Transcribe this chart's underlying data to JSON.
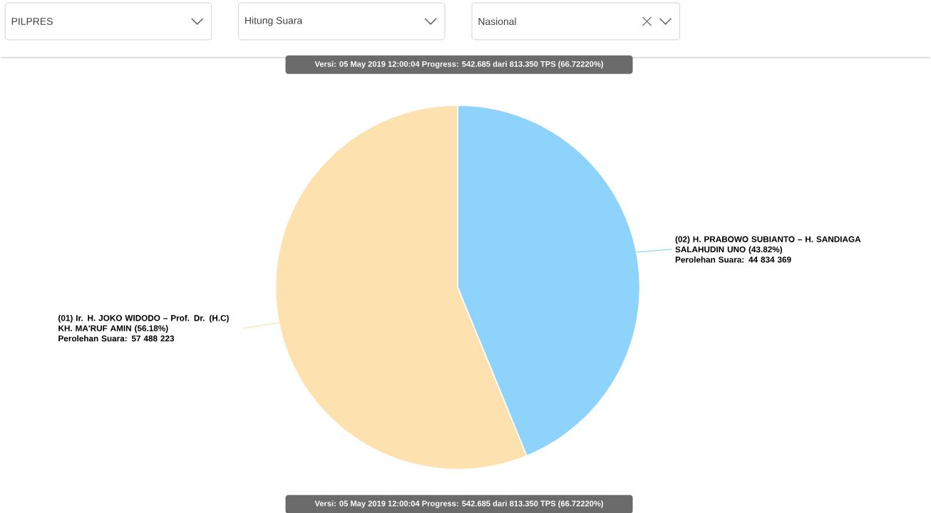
{
  "chart_data": {
    "type": "pie",
    "title": "Versi: 05 May 2019 12:00:04 Progress: 542.685 dari 813.350 TPS (66.72220%)",
    "categories": [
      "(02) H. PRABOWO SUBIANTO – H. SANDIAGA SALAHUDIN UNO (43.82%)",
      "(01) Ir. H. JOKO WIDODO – Prof. Dr. (H.C) KH. MA'RUF AMIN (56.18%)"
    ],
    "values": [
      44834369,
      57488223
    ],
    "colors": [
      "#8ed3fb",
      "#fde1ae"
    ],
    "value_labels": [
      "Perolehan Suara: 44 834 369",
      "Perolehan Suara: 57 488 223"
    ],
    "annotations": [
      "PILPRES",
      "Hitung Suara",
      "Nasional",
      "Versi: 05 May 2019 12:00:04 Progress: 542.685 dari 813.350 TPS (66.72220%)"
    ]
  }
}
